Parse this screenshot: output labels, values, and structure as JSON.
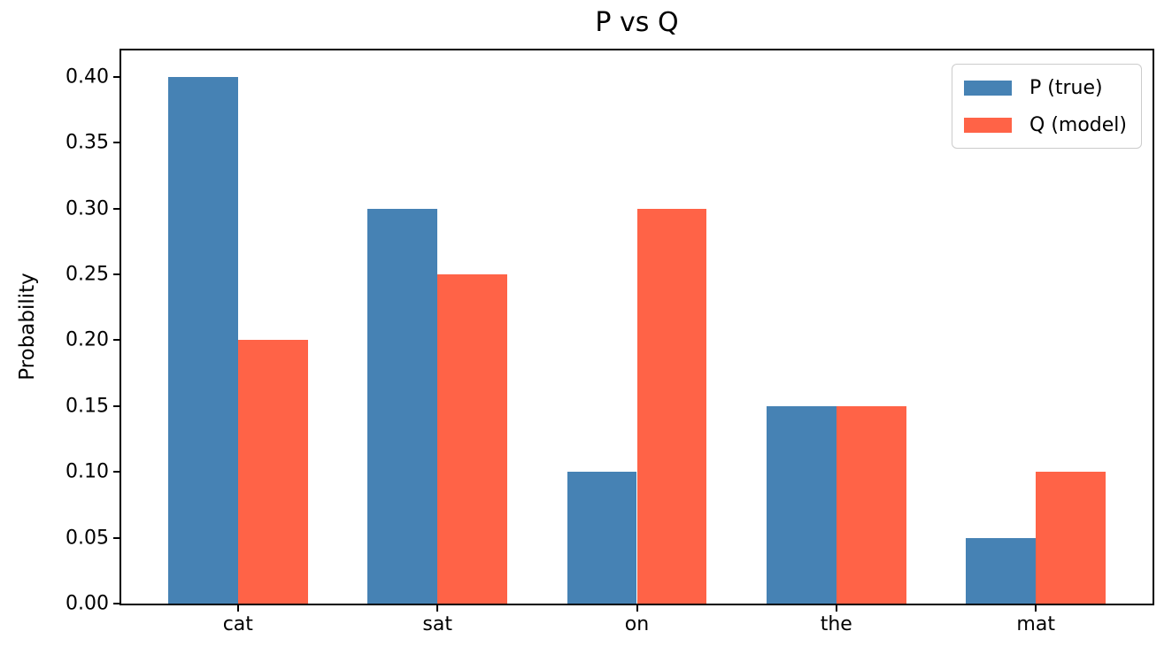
{
  "chart_data": {
    "type": "bar",
    "title": "P vs Q",
    "xlabel": "",
    "ylabel": "Probability",
    "categories": [
      "cat",
      "sat",
      "on",
      "the",
      "mat"
    ],
    "series": [
      {
        "name": "P (true)",
        "color": "#4682B4",
        "values": [
          0.4,
          0.3,
          0.1,
          0.15,
          0.05
        ]
      },
      {
        "name": "Q (model)",
        "color": "#FF6347",
        "values": [
          0.2,
          0.25,
          0.3,
          0.15,
          0.1
        ]
      }
    ],
    "bar_width_fraction": 0.35,
    "ylim": [
      0,
      0.42
    ],
    "yticks": [
      0.0,
      0.05,
      0.1,
      0.15,
      0.2,
      0.25,
      0.3,
      0.35,
      0.4
    ],
    "ytick_labels": [
      "0.00",
      "0.05",
      "0.10",
      "0.15",
      "0.20",
      "0.25",
      "0.30",
      "0.35",
      "0.40"
    ],
    "grid": false,
    "legend_position": "upper right",
    "frame": "full-box",
    "colors": {
      "background": "#ffffff",
      "axes": "#000000",
      "legend_border": "#cccccc"
    }
  }
}
